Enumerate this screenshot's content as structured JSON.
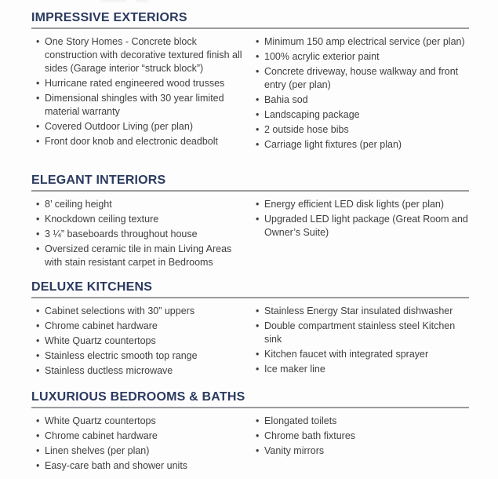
{
  "colors": {
    "background": "#fdfdfd",
    "heading": "#2b3a5f",
    "body_text": "#3f3f3f",
    "rule": "#9a9b9d"
  },
  "document": {
    "sections": [
      {
        "title": "IMPRESSIVE EXTERIORS",
        "left_items": [
          "One Story Homes - Concrete block construction with decorative textured finish all sides (Garage interior “struck block”)",
          "Hurricane rated engineered wood trusses",
          "Dimensional shingles with 30 year limited material warranty",
          "Covered Outdoor Living (per plan)",
          "Front door knob and electronic deadbolt"
        ],
        "right_items": [
          "Minimum 150 amp electrical service (per plan)",
          "100% acrylic exterior paint",
          "Concrete driveway, house walkway and front entry (per plan)",
          "Bahia sod",
          "Landscaping package",
          "2 outside hose bibs",
          "Carriage light fixtures (per plan)"
        ]
      },
      {
        "title": "ELEGANT INTERIORS",
        "left_items": [
          "8’ ceiling height",
          "Knockdown ceiling texture",
          "3 ¼” baseboards throughout house",
          "Oversized ceramic tile in main Living Areas with stain resistant carpet in Bedrooms"
        ],
        "right_items": [
          "Energy efficient LED disk lights (per plan)",
          "Upgraded LED light package (Great Room and Owner’s Suite)"
        ]
      },
      {
        "title": "DELUXE KITCHENS",
        "left_items": [
          "Cabinet selections with 30” uppers",
          "Chrome cabinet hardware",
          "White Quartz countertops",
          "Stainless electric smooth top range",
          "Stainless ductless microwave"
        ],
        "right_items": [
          "Stainless Energy Star insulated dishwasher",
          "Double compartment stainless steel Kitchen sink",
          "Kitchen faucet with integrated sprayer",
          "Ice maker line"
        ]
      },
      {
        "title": "LUXURIOUS BEDROOMS & BATHS",
        "left_items": [
          "White Quartz countertops",
          "Chrome cabinet hardware",
          "Linen shelves (per plan)",
          "Easy-care bath and shower units"
        ],
        "right_items": [
          "Elongated toilets",
          "Chrome bath fixtures",
          "Vanity mirrors"
        ]
      }
    ]
  }
}
